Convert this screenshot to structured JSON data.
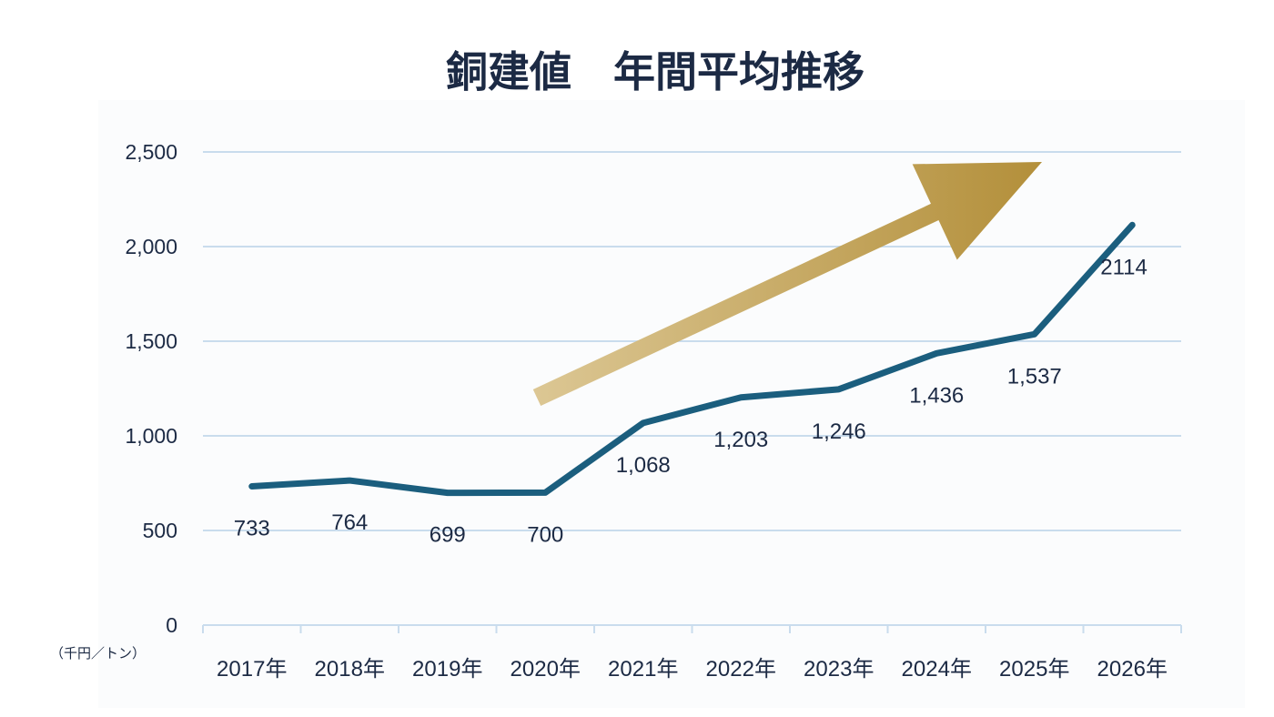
{
  "chart_data": {
    "type": "line",
    "title": "銅建値　年間平均推移",
    "ylabel": "（千円／トン）",
    "xlabel": "",
    "categories": [
      "2017年",
      "2018年",
      "2019年",
      "2020年",
      "2021年",
      "2022年",
      "2023年",
      "2024年",
      "2025年",
      "2026年"
    ],
    "series": [
      {
        "name": "銅建値",
        "values": [
          733,
          764,
          699,
          700,
          1068,
          1203,
          1246,
          1436,
          1537,
          2114
        ],
        "data_labels": [
          "733",
          "764",
          "699",
          "700",
          "1,068",
          "1,203",
          "1,246",
          "1,436",
          "1,537",
          "2114"
        ]
      }
    ],
    "ylim": [
      0,
      2500
    ],
    "yticks": [
      0,
      500,
      1000,
      1500,
      2000,
      2500
    ],
    "ytick_labels": [
      "0",
      "500",
      "1,000",
      "1,500",
      "2,000",
      "2,500"
    ],
    "grid": true,
    "annotations": [
      {
        "type": "trend-arrow",
        "direction": "up-right"
      }
    ],
    "colors": {
      "line": "#1b5e7e",
      "grid": "#c9dced",
      "text": "#1c2a44",
      "arrow_start": "#dcc794",
      "arrow_end": "#b38f3a"
    }
  }
}
